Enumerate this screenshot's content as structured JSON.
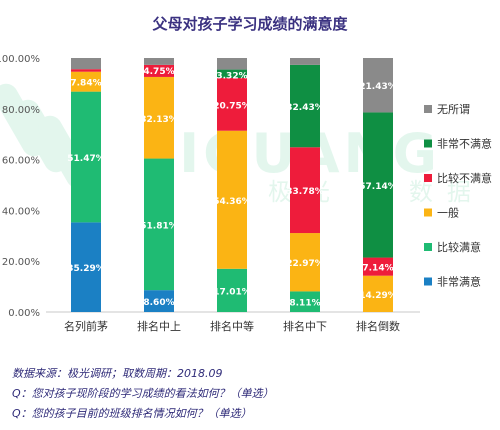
{
  "chart_data": {
    "type": "bar",
    "stacked": true,
    "title": "父母对孩子学习成绩的满意度",
    "categories": [
      "名列前茅",
      "排名中上",
      "排名中等",
      "排名中下",
      "排名倒数"
    ],
    "ylim": [
      0,
      100
    ],
    "yticks": [
      "0.00%",
      "20.00%",
      "40.00%",
      "60.00%",
      "80.00%",
      "100.00%"
    ],
    "grid": false,
    "legend_position": "right",
    "series": [
      {
        "name": "非常满意",
        "color": "#1b80c4",
        "values": [
          35.29,
          8.6,
          0,
          0,
          0
        ],
        "labels": [
          "35.29%",
          "8.60%",
          "",
          "",
          ""
        ]
      },
      {
        "name": "比较满意",
        "color": "#1fbb73",
        "values": [
          51.47,
          51.81,
          17.01,
          8.11,
          0
        ],
        "labels": [
          "51.47%",
          "51.81%",
          "17.01%",
          "8.11%",
          ""
        ]
      },
      {
        "name": "一般",
        "color": "#fbb414",
        "values": [
          7.84,
          32.13,
          54.36,
          22.97,
          14.29
        ],
        "labels": [
          "7.84%",
          "32.13%",
          "54.36%",
          "22.97%",
          "14.29%"
        ]
      },
      {
        "name": "比较不满意",
        "color": "#ee1c3b",
        "values": [
          1.0,
          4.75,
          20.75,
          33.78,
          7.14
        ],
        "labels": [
          "",
          "4.75%",
          "20.75%",
          "33.78%",
          "7.14%"
        ]
      },
      {
        "name": "非常不满意",
        "color": "#0f8f43",
        "values": [
          0,
          0,
          3.32,
          32.43,
          57.14
        ],
        "labels": [
          "",
          "",
          "3.32%",
          "32.43%",
          "57.14%"
        ]
      },
      {
        "name": "无所谓",
        "color": "#8a8a8a",
        "values": [
          4.4,
          2.71,
          4.56,
          2.71,
          21.43
        ],
        "labels": [
          "",
          "",
          "",
          "",
          "21.43%"
        ]
      }
    ]
  },
  "watermark": {
    "brand": "JIGUANG",
    "tagline": "极光 · 数据"
  },
  "footnotes": {
    "source": "数据来源：极光调研；取数周期：2018.09",
    "q1": "Q：您对孩子现阶段的学习成绩的看法如何？（单选）",
    "q2": "Q：您的孩子目前的班级排名情况如何？（单选）"
  },
  "colors": {
    "title": "#3a3180",
    "footnote": "#2e2a78"
  }
}
